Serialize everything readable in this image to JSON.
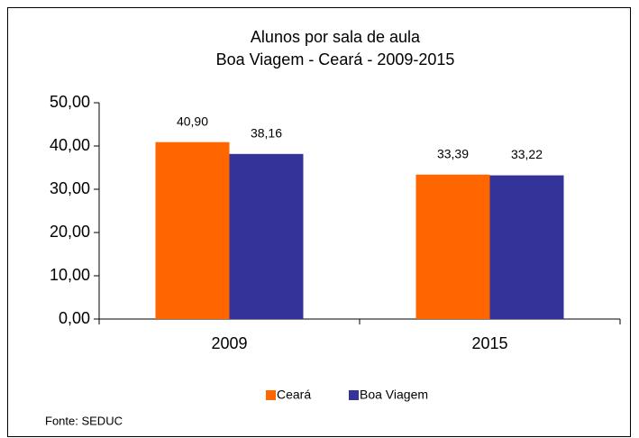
{
  "chart_data": {
    "type": "bar",
    "title": "Alunos por sala de aula",
    "subtitle": "Boa Viagem - Ceará - 2009-2015",
    "categories": [
      "2009",
      "2015"
    ],
    "series": [
      {
        "name": "Ceará",
        "color": "#ff6600",
        "values": [
          40.9,
          33.39
        ],
        "value_labels": [
          "40,90",
          "33,39"
        ]
      },
      {
        "name": "Boa Viagem",
        "color": "#333399",
        "values": [
          38.16,
          33.22
        ],
        "value_labels": [
          "38,16",
          "33,22"
        ]
      }
    ],
    "ylim": [
      0,
      50
    ],
    "yticks": [
      {
        "value": 0,
        "label": "0,00"
      },
      {
        "value": 10,
        "label": "10,00"
      },
      {
        "value": 20,
        "label": "20,00"
      },
      {
        "value": 30,
        "label": "30,00"
      },
      {
        "value": 40,
        "label": "40,00"
      },
      {
        "value": 50,
        "label": "50,00"
      }
    ],
    "legend": "bottom",
    "source": "Fonte: SEDUC"
  }
}
